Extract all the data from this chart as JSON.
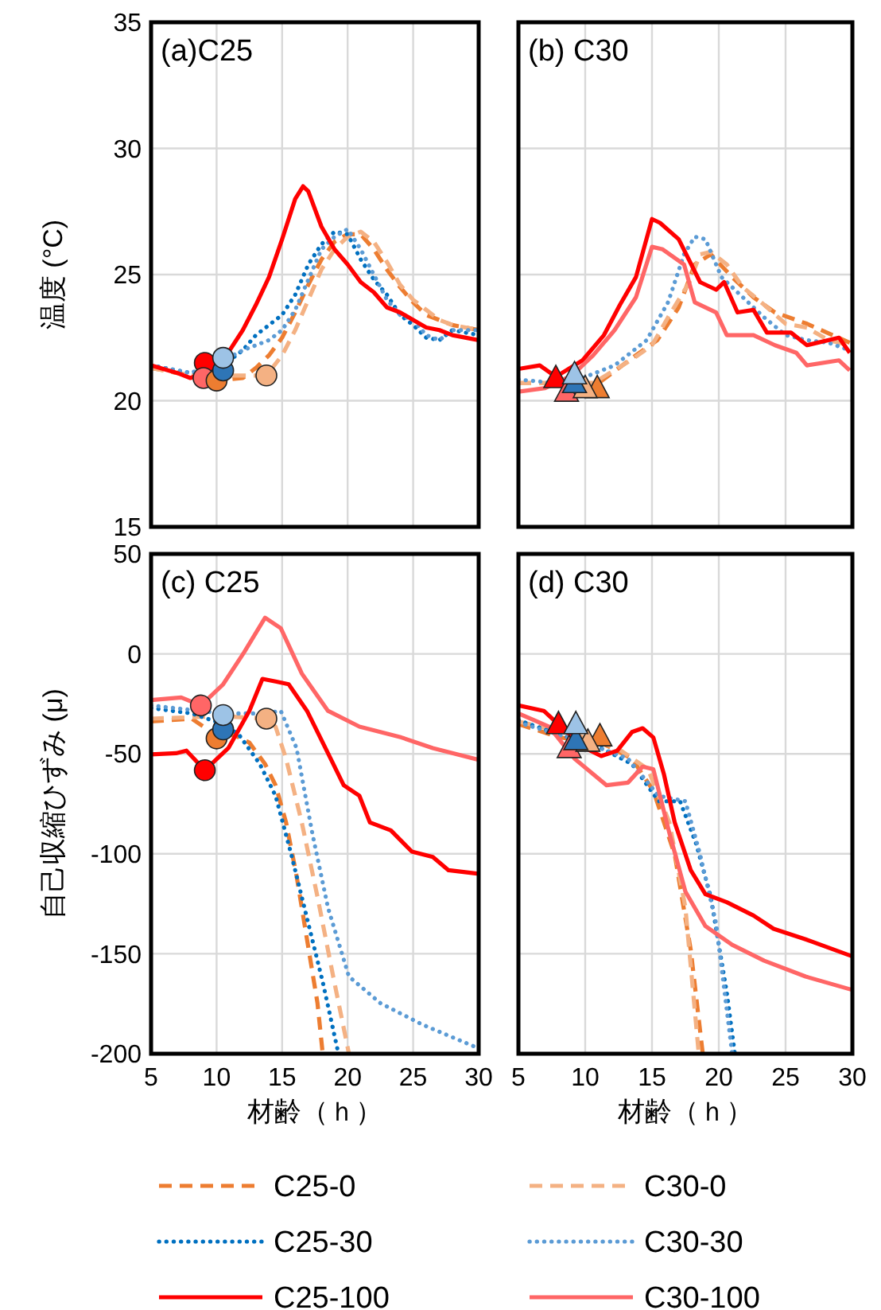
{
  "chart_data": [
    {
      "type": "line",
      "title": "(a)C25",
      "ylabel": "温度 (°C)",
      "xlim": [
        5,
        30
      ],
      "ylim": [
        15,
        35
      ],
      "xticks": [
        5,
        10,
        15,
        20,
        25,
        30
      ],
      "yticks": [
        15,
        20,
        25,
        30,
        35
      ],
      "grid": true,
      "tick_labels": "y",
      "series": [
        {
          "color": "#ed7d31",
          "line_style": "dashed",
          "x": [
            5,
            8,
            10,
            12,
            13,
            14,
            15,
            16,
            17,
            18,
            19,
            20,
            21,
            22,
            23,
            24,
            25,
            26,
            27,
            28,
            30
          ],
          "values": [
            21.3,
            21.0,
            20.8,
            20.9,
            21.3,
            21.8,
            22.5,
            23.5,
            24.6,
            25.6,
            26.3,
            26.6,
            26.6,
            26.0,
            25.2,
            24.5,
            23.9,
            23.4,
            23.2,
            23.0,
            22.8
          ]
        },
        {
          "color": "#f4b183",
          "line_style": "dashed",
          "x": [
            5,
            8,
            13.8,
            15,
            16,
            17,
            18,
            19,
            20,
            21,
            22,
            23,
            24,
            25,
            26,
            27,
            28,
            30
          ],
          "values": [
            21.3,
            21.0,
            21.0,
            21.8,
            22.8,
            24.0,
            25.2,
            26.0,
            26.5,
            26.7,
            26.3,
            25.5,
            24.6,
            24.0,
            23.6,
            23.2,
            23.0,
            22.8
          ]
        },
        {
          "color": "#0070c0",
          "line_style": "dotted",
          "x": [
            5,
            8,
            10,
            11,
            12,
            13,
            14,
            15,
            16,
            17,
            18,
            19,
            20,
            21,
            22,
            23,
            24,
            25,
            26,
            27,
            28,
            30
          ],
          "values": [
            21.4,
            21.1,
            21.3,
            21.6,
            22.0,
            22.6,
            23.0,
            23.4,
            24.2,
            25.4,
            26.2,
            26.7,
            26.6,
            25.6,
            24.8,
            24.2,
            23.4,
            23.0,
            22.5,
            22.4,
            22.8,
            22.6
          ]
        },
        {
          "color": "#5b9bd5",
          "line_style": "dotted",
          "x": [
            5,
            8,
            10.5,
            12,
            14,
            15,
            16,
            17,
            18,
            19,
            20,
            21,
            22,
            23,
            24,
            25,
            26,
            27,
            28,
            30
          ],
          "values": [
            21.4,
            21.1,
            21.6,
            22.0,
            22.4,
            22.8,
            23.6,
            24.8,
            26.0,
            26.5,
            26.8,
            26.0,
            25.0,
            24.0,
            23.4,
            23.2,
            22.6,
            22.4,
            22.8,
            22.8
          ]
        },
        {
          "color": "#ff0000",
          "line_style": "solid",
          "x": [
            5,
            7,
            8,
            9,
            10,
            11,
            12,
            13,
            14,
            15,
            16,
            16.6,
            17,
            18,
            19,
            20,
            21,
            22,
            23,
            24,
            25,
            26,
            27,
            28,
            30
          ],
          "values": [
            21.4,
            21.1,
            20.9,
            21.1,
            21.3,
            22.0,
            22.8,
            23.8,
            24.9,
            26.4,
            28.0,
            28.5,
            28.3,
            26.9,
            26.0,
            25.4,
            24.7,
            24.3,
            23.7,
            23.5,
            23.2,
            22.9,
            22.8,
            22.6,
            22.4
          ]
        },
        {
          "type": "scatter",
          "marker": "circle",
          "x": [
            9.1,
            9.0,
            10.0,
            13.8,
            10.5,
            10.5
          ],
          "values": [
            21.5,
            20.9,
            20.8,
            21.0,
            21.2,
            21.7
          ],
          "colors": [
            "#ff0000",
            "#ff6666",
            "#ed7d31",
            "#f4b183",
            "#2e75b6",
            "#9dc3e6"
          ]
        }
      ]
    },
    {
      "type": "line",
      "title": "(b) C30",
      "xlim": [
        5,
        30
      ],
      "ylim": [
        15,
        35
      ],
      "xticks": [
        5,
        10,
        15,
        20,
        25,
        30
      ],
      "yticks": [
        15,
        20,
        25,
        30,
        35
      ],
      "grid": true,
      "tick_labels": false,
      "series": [
        {
          "color": "#ed7d31",
          "line_style": "dashed",
          "x": [
            5,
            11,
            13.8,
            15.4,
            17,
            18.2,
            19.4,
            21,
            22.6,
            24.2,
            26.6,
            29.8
          ],
          "values": [
            20.7,
            20.7,
            21.8,
            22.4,
            23.7,
            25.4,
            25.8,
            24.9,
            24.1,
            23.5,
            23.05,
            22.3
          ]
        },
        {
          "color": "#f4b183",
          "line_style": "dashed",
          "x": [
            5,
            7.8,
            10.6,
            13.4,
            15,
            16.2,
            17.8,
            18.6,
            19.4,
            20.6,
            21.8,
            23.4,
            25,
            26.6,
            28.2,
            29.8
          ],
          "values": [
            20.7,
            20.7,
            20.7,
            21.6,
            22.2,
            23.3,
            24.7,
            25.8,
            25.9,
            25.4,
            24.5,
            23.8,
            23.05,
            22.9,
            22.4,
            22.2
          ]
        },
        {
          "color": "#5b9bd5",
          "line_style": "dotted",
          "x": [
            5,
            7.8,
            9.8,
            12.2,
            14.6,
            16.2,
            17.4,
            18.2,
            19,
            20.2,
            21.8,
            23.4,
            25,
            26.6,
            28.2,
            29.8
          ],
          "values": [
            20.84,
            20.7,
            20.9,
            21.4,
            22.4,
            23.9,
            25.8,
            26.5,
            26.4,
            24.9,
            24.1,
            23.3,
            22.6,
            22.4,
            22.3,
            22.0
          ]
        },
        {
          "color": "#ff0000",
          "line_style": "solid",
          "x": [
            5,
            6.6,
            7.8,
            9.8,
            11.4,
            12.6,
            13.8,
            15,
            15.6,
            17,
            18.6,
            19.8,
            20.4,
            21.4,
            22.6,
            23.6,
            25.4,
            26.6,
            29,
            29.8
          ],
          "values": [
            21.26,
            21.4,
            20.95,
            21.6,
            22.6,
            23.8,
            24.9,
            27.2,
            27.05,
            26.4,
            24.7,
            24.4,
            24.7,
            23.5,
            23.6,
            22.7,
            22.7,
            22.2,
            22.5,
            21.9
          ]
        },
        {
          "color": "#ff6666",
          "line_style": "solid",
          "x": [
            5,
            7,
            9,
            10.6,
            12.2,
            13.8,
            15,
            15.8,
            17.4,
            18.2,
            19.8,
            20.6,
            22.6,
            24.2,
            25.8,
            26.6,
            29,
            29.8
          ],
          "values": [
            20.36,
            20.5,
            21.0,
            21.8,
            22.8,
            24.1,
            26.1,
            26.0,
            25.4,
            23.9,
            23.5,
            22.6,
            22.6,
            22.2,
            21.9,
            21.4,
            21.6,
            21.2
          ]
        },
        {
          "type": "scatter",
          "marker": "triangle",
          "x": [
            7.8,
            8.6,
            10.9,
            10.0,
            9.2,
            9.2
          ],
          "values": [
            20.9,
            20.36,
            20.5,
            20.5,
            20.7,
            21.05
          ],
          "colors": [
            "#ff0000",
            "#ff6666",
            "#ed7d31",
            "#f4b183",
            "#2e75b6",
            "#9dc3e6"
          ]
        }
      ]
    },
    {
      "type": "line",
      "title": "(c) C25",
      "xlabel": "材齢（ｈ）",
      "ylabel": "自己収縮ひずみ (μ)",
      "xlim": [
        5,
        30
      ],
      "ylim": [
        -200,
        50
      ],
      "xticks": [
        5,
        10,
        15,
        20,
        25,
        30
      ],
      "yticks": [
        -200,
        -150,
        -100,
        -50,
        0,
        50
      ],
      "grid": true,
      "series": [
        {
          "color": "#ed7d31",
          "line_style": "dashed",
          "x": [
            5,
            8.1,
            9,
            10,
            11.3,
            12.5,
            13.7,
            14.5,
            15.3,
            16.1,
            16.9,
            17.7,
            18.1
          ],
          "values": [
            -33.8,
            -32.4,
            -36.4,
            -41.8,
            -40.4,
            -44.4,
            -55.1,
            -65.7,
            -84.3,
            -110.9,
            -142.8,
            -174.7,
            -200
          ]
        },
        {
          "color": "#f4b183",
          "line_style": "dashed",
          "x": [
            5,
            10.5,
            13.7,
            14.5,
            15.3,
            16.5,
            17.7,
            18.9,
            20.1
          ],
          "values": [
            -32.4,
            -31.1,
            -32.4,
            -36.4,
            -52.4,
            -84.3,
            -121.5,
            -161.4,
            -200
          ]
        },
        {
          "color": "#0070c0",
          "line_style": "dotted",
          "x": [
            5,
            8.1,
            10.5,
            11.7,
            13.3,
            14.5,
            15.7,
            16.9,
            18.1,
            19.3
          ],
          "values": [
            -27.1,
            -29.8,
            -35.1,
            -40.4,
            -55.1,
            -71,
            -100.3,
            -132.2,
            -164.1,
            -200
          ]
        },
        {
          "color": "#5b9bd5",
          "line_style": "dotted",
          "x": [
            5,
            10.5,
            13.7,
            14.9,
            16.1,
            17.3,
            18.5,
            20.1,
            22.5,
            25.7,
            30
          ],
          "values": [
            -25.8,
            -29.8,
            -29.8,
            -28.5,
            -47.1,
            -89.6,
            -126.9,
            -161.4,
            -174.7,
            -185.4,
            -197.3
          ]
        },
        {
          "color": "#ff0000",
          "line_style": "solid",
          "x": [
            5,
            6.9,
            7.7,
            9.1,
            10.9,
            12.5,
            13.5,
            14.5,
            15.5,
            16.9,
            18.5,
            19.7,
            20.9,
            21.7,
            23.3,
            24.9,
            26.5,
            27.7,
            30
          ],
          "values": [
            -50.3,
            -49.7,
            -48.4,
            -58.2,
            -47.1,
            -28.5,
            -12.5,
            -13.8,
            -15.2,
            -28.5,
            -49.7,
            -65.7,
            -71,
            -84.3,
            -88.3,
            -98.9,
            -101.6,
            -108.2,
            -110
          ]
        },
        {
          "color": "#ff6666",
          "line_style": "solid",
          "x": [
            5,
            7.3,
            8.8,
            10.5,
            12.1,
            13.7,
            14.9,
            16.5,
            18.5,
            20.9,
            24.1,
            26.5,
            30
          ],
          "values": [
            -23.1,
            -21.8,
            -25.8,
            -15.2,
            0.8,
            18.1,
            12.8,
            -9.8,
            -28.5,
            -36.4,
            -41.8,
            -47.1,
            -53
          ]
        },
        {
          "type": "scatter",
          "marker": "circle",
          "x": [
            9.1,
            8.8,
            10.0,
            13.8,
            10.5,
            10.5
          ],
          "values": [
            -58.2,
            -25.8,
            -42.3,
            -32.4,
            -37.8,
            -30.6
          ],
          "colors": [
            "#ff0000",
            "#ff6666",
            "#ed7d31",
            "#f4b183",
            "#2e75b6",
            "#9dc3e6"
          ]
        }
      ]
    },
    {
      "type": "line",
      "title": "(d) C30",
      "xlabel": "材齢（ｈ）",
      "xlim": [
        5,
        30
      ],
      "ylim": [
        -200,
        50
      ],
      "xticks": [
        5,
        10,
        15,
        20,
        25,
        30
      ],
      "yticks": [
        -200,
        -150,
        -100,
        -50,
        0,
        50
      ],
      "grid": true,
      "tick_labels": "x",
      "legend": "bottom",
      "series": [
        {
          "name": "C25-0",
          "color": "#ed7d31",
          "line_style": "dashed",
          "x": [
            5,
            8.1,
            11.2,
            13.5,
            15.1,
            16.7,
            17.9,
            18.8
          ],
          "values": [
            -35.1,
            -41.8,
            -44.4,
            -52.4,
            -68.4,
            -100.3,
            -148.1,
            -200
          ]
        },
        {
          "name": "C30-0",
          "color": "#f4b183",
          "line_style": "dashed",
          "x": [
            5,
            10,
            12.4,
            14.7,
            16.3,
            17.5,
            18.5
          ],
          "values": [
            -33.8,
            -41.8,
            -47.1,
            -57.7,
            -84.3,
            -126.9,
            -200
          ]
        },
        {
          "name": "C25-30",
          "color": "#0070c0",
          "line_style": "dotted",
          "x": [
            5,
            8.1,
            11.2,
            13.5,
            15.5,
            17.1,
            18.3,
            19.4,
            20.6,
            21.2
          ],
          "values": [
            -33.2,
            -40.4,
            -47.1,
            -55.1,
            -73.7,
            -73.7,
            -94.9,
            -121.5,
            -169.4,
            -200
          ]
        },
        {
          "name": "C30-30",
          "color": "#5b9bd5",
          "line_style": "dotted",
          "x": [
            5,
            10,
            13.2,
            15.5,
            17.5,
            18.6,
            19.8,
            21
          ],
          "values": [
            -34.3,
            -44.4,
            -52.4,
            -71,
            -73.7,
            -100.3,
            -134.8,
            -200
          ]
        },
        {
          "name": "C25-100",
          "color": "#ff0000",
          "line_style": "solid",
          "x": [
            5,
            6.9,
            8.1,
            10,
            11.2,
            12.4,
            13.5,
            14.3,
            15.1,
            15.9,
            16.7,
            17.9,
            19,
            20.6,
            22.6,
            24.1,
            26.5,
            30
          ],
          "values": [
            -25.8,
            -28.5,
            -35.9,
            -47.1,
            -51.1,
            -48.4,
            -39.1,
            -37.2,
            -41.8,
            -60.4,
            -84.3,
            -108.2,
            -120.2,
            -124.2,
            -130.9,
            -137.5,
            -142.8,
            -151.3
          ]
        },
        {
          "name": "C30-100",
          "color": "#ff6666",
          "line_style": "solid",
          "x": [
            5,
            7.3,
            9.2,
            11.6,
            13.2,
            14.3,
            15.1,
            16.3,
            17.5,
            19,
            21,
            23.4,
            26.5,
            30
          ],
          "values": [
            -29.8,
            -36.4,
            -52.4,
            -65.7,
            -64.4,
            -56.4,
            -57.7,
            -89.6,
            -118.9,
            -136.2,
            -145.5,
            -153.5,
            -161.4,
            -168.1
          ]
        },
        {
          "type": "scatter",
          "marker": "triangle",
          "x": [
            8.0,
            8.8,
            11.1,
            10.2,
            9.3,
            9.3
          ],
          "values": [
            -35.1,
            -47.1,
            -41.2,
            -43.9,
            -43.1,
            -35.1
          ],
          "colors": [
            "#ff0000",
            "#ff6666",
            "#ed7d31",
            "#f4b183",
            "#2e75b6",
            "#9dc3e6"
          ]
        }
      ]
    }
  ]
}
